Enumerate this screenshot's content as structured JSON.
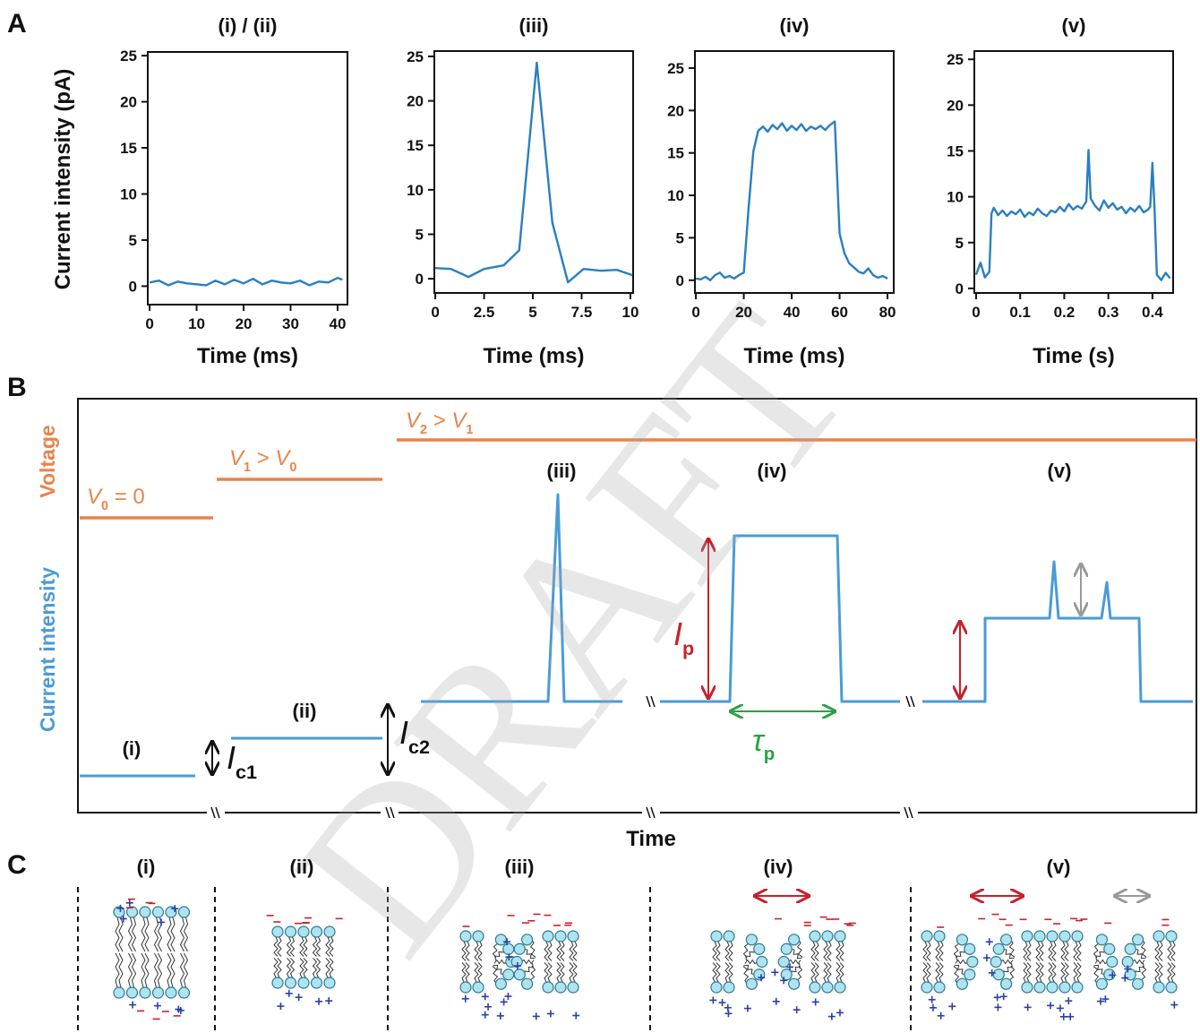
{
  "panel_labels": [
    "A",
    "B",
    "C"
  ],
  "watermark": "DRAFT",
  "chart_data": [
    {
      "type": "line",
      "title": "(i) / (ii)",
      "xlabel": "Time (ms)",
      "ylabel": "Current intensity (pA)",
      "color": "#2a7fc0",
      "x": [
        0,
        2,
        4,
        6,
        8,
        10,
        12,
        14,
        16,
        18,
        20,
        22,
        24,
        26,
        28,
        30,
        32,
        34,
        36,
        38,
        40,
        41
      ],
      "values": [
        0.4,
        0.6,
        0.1,
        0.5,
        0.3,
        0.2,
        0.1,
        0.6,
        0.2,
        0.7,
        0.3,
        0.8,
        0.2,
        0.6,
        0.4,
        0.3,
        0.6,
        0.1,
        0.5,
        0.4,
        0.9,
        0.7
      ],
      "xlim": [
        -0.4,
        42.1
      ],
      "ylim": [
        -2,
        25.4
      ],
      "xticks": [
        0,
        10,
        20,
        30,
        40
      ],
      "yticks": [
        0,
        5,
        10,
        15,
        20,
        25
      ]
    },
    {
      "type": "line",
      "title": "(iii)",
      "xlabel": "Time (ms)",
      "color": "#2a7fc0",
      "x": [
        0,
        0.8,
        1.7,
        2.5,
        3.5,
        4.3,
        5.2,
        6.0,
        6.8,
        7.6,
        8.5,
        9.3,
        10.1
      ],
      "values": [
        1.2,
        1.1,
        0.2,
        1.1,
        1.5,
        3.2,
        24.3,
        6.3,
        -0.4,
        1.1,
        0.9,
        1.0,
        0.4
      ],
      "xlim": [
        -0.05,
        10.14
      ],
      "ylim": [
        -1.6,
        25.6
      ],
      "xticks": [
        0,
        2.5,
        5,
        7.5,
        10
      ],
      "yticks": [
        0,
        5,
        10,
        15,
        20,
        25
      ]
    },
    {
      "type": "line",
      "title": "(iv)",
      "xlabel": "Time (ms)",
      "color": "#2a7fc0",
      "x": [
        0,
        2,
        4,
        6,
        8,
        10,
        12,
        14,
        16,
        18,
        20,
        22,
        24,
        26,
        28,
        30,
        32,
        34,
        36,
        38,
        40,
        42,
        44,
        46,
        48,
        50,
        52,
        54,
        56,
        58,
        60,
        62,
        64,
        66,
        68,
        70,
        72,
        74,
        76,
        78,
        80
      ],
      "values": [
        0.2,
        0.1,
        0.4,
        0.0,
        0.6,
        0.9,
        0.3,
        0.5,
        0.2,
        0.6,
        0.9,
        8.5,
        15.2,
        17.6,
        18.1,
        17.5,
        18.3,
        17.8,
        18.5,
        17.6,
        18.2,
        17.7,
        18.4,
        17.6,
        18.1,
        17.8,
        18.2,
        17.7,
        18.3,
        18.7,
        5.5,
        3.2,
        2.0,
        1.5,
        1.0,
        0.8,
        1.4,
        0.6,
        0.3,
        0.5,
        0.2
      ],
      "xlim": [
        -0.4,
        82.6
      ],
      "ylim": [
        -1.5,
        27
      ],
      "xticks": [
        0,
        20,
        40,
        60,
        80
      ],
      "yticks": [
        0,
        5,
        10,
        15,
        20,
        25
      ]
    },
    {
      "type": "line",
      "title": "(v)",
      "xlabel": "Time (s)",
      "color": "#2a7fc0",
      "x": [
        0,
        0.01,
        0.02,
        0.03,
        0.035,
        0.04,
        0.05,
        0.06,
        0.07,
        0.08,
        0.09,
        0.1,
        0.11,
        0.12,
        0.13,
        0.14,
        0.15,
        0.16,
        0.17,
        0.18,
        0.19,
        0.2,
        0.21,
        0.22,
        0.23,
        0.24,
        0.25,
        0.255,
        0.26,
        0.27,
        0.28,
        0.29,
        0.3,
        0.31,
        0.32,
        0.33,
        0.34,
        0.35,
        0.36,
        0.37,
        0.38,
        0.39,
        0.395,
        0.4,
        0.405,
        0.41,
        0.42,
        0.43,
        0.44
      ],
      "values": [
        1.5,
        2.8,
        1.2,
        1.8,
        8.2,
        8.8,
        8.0,
        8.5,
        7.9,
        8.4,
        8.1,
        8.6,
        7.8,
        8.3,
        8.0,
        8.7,
        8.2,
        7.9,
        8.5,
        8.3,
        8.9,
        8.4,
        9.2,
        8.6,
        9.0,
        8.7,
        9.5,
        15.1,
        9.8,
        9.0,
        8.5,
        9.6,
        8.8,
        9.3,
        8.6,
        8.9,
        8.2,
        8.8,
        8.4,
        9.0,
        8.3,
        8.6,
        8.9,
        13.7,
        8.5,
        1.5,
        0.9,
        1.7,
        1.1
      ],
      "xlim": [
        -0.004,
        0.447
      ],
      "ylim": [
        -0.5,
        25.9
      ],
      "xticks": [
        0,
        0.1,
        0.2,
        0.3,
        0.4
      ],
      "yticks": [
        0,
        5,
        10,
        15,
        20,
        25
      ]
    }
  ],
  "schematic": {
    "time_label": "Time",
    "y_labels": [
      "Voltage",
      "Current intensity"
    ],
    "voltage_labels": [
      [
        "V",
        "0",
        " = 0"
      ],
      [
        "V",
        "1",
        " > ",
        "V",
        "0"
      ],
      [
        "V",
        "2",
        " > ",
        "V",
        "1"
      ]
    ],
    "event_labels": [
      "(i)",
      "(ii)",
      "(iii)",
      "(iv)",
      "(v)"
    ],
    "amplitude_labels": [
      [
        "I",
        "c1"
      ],
      [
        "I",
        "c2"
      ],
      [
        "I",
        "p"
      ]
    ],
    "duration_label": [
      "τ",
      "p"
    ]
  },
  "illustrations": {
    "labels": [
      "(i)",
      "(ii)",
      "(iii)",
      "(iv)",
      "(v)"
    ]
  }
}
